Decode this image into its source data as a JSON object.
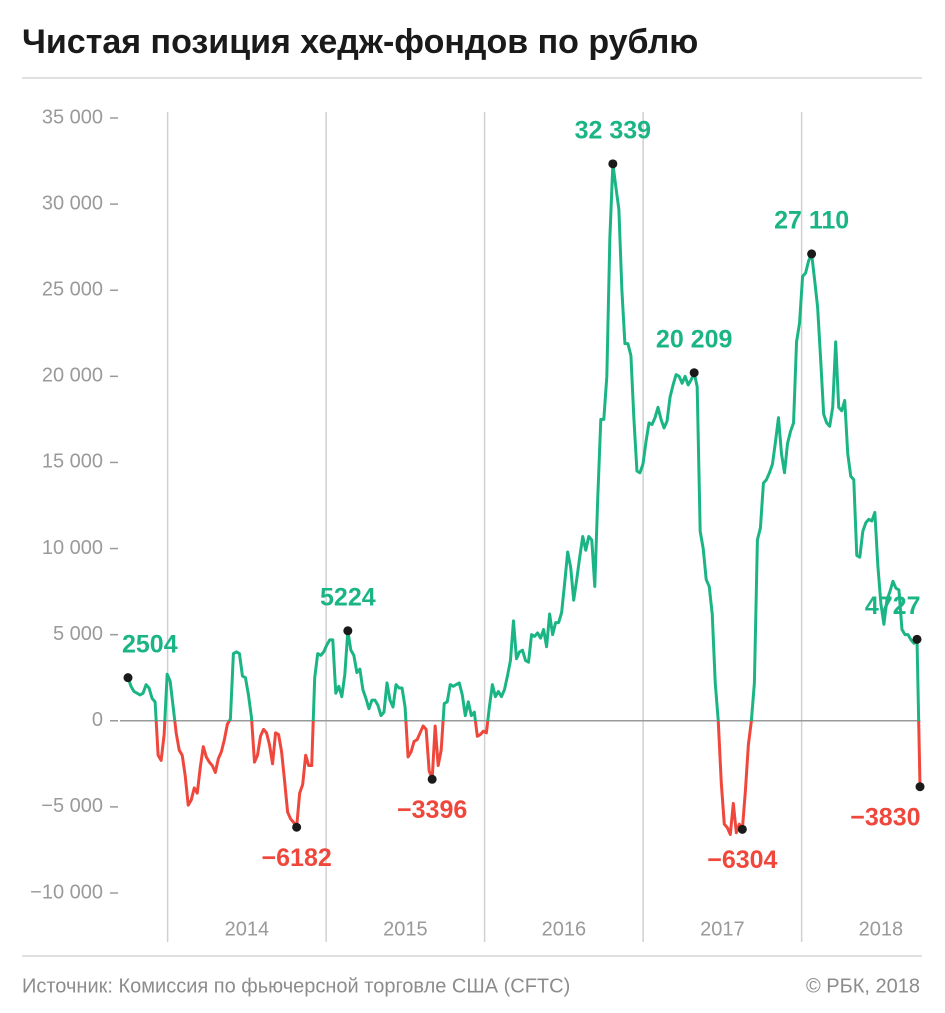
{
  "chart_data": {
    "type": "line",
    "title": "Чистая позиция хедж-фондов по рублю",
    "source": "Источник: Комиссия по фьючерсной торговле США (CFTC)",
    "credit": "© РБК, 2018",
    "color": "#1bb585",
    "negative_color": "#f0473c",
    "marker_color": "#1a1a1a",
    "xlim": [
      2013.75,
      2018.75
    ],
    "xgrid": [
      2014,
      2015,
      2016,
      2017,
      2018
    ],
    "xticks": [
      {
        "value": 2014.5,
        "label": "2014"
      },
      {
        "value": 2015.5,
        "label": "2015"
      },
      {
        "value": 2016.5,
        "label": "2016"
      },
      {
        "value": 2017.5,
        "label": "2017"
      },
      {
        "value": 2018.5,
        "label": "2018"
      }
    ],
    "ylim": [
      -10000,
      35000
    ],
    "yticks": [
      {
        "value": -10000,
        "label": "−10 000"
      },
      {
        "value": -5000,
        "label": "−5 000"
      },
      0,
      {
        "value": 5000,
        "label": "5 000"
      },
      {
        "value": 10000,
        "label": "10 000"
      },
      {
        "value": 15000,
        "label": "15 000"
      },
      {
        "value": 20000,
        "label": "20 000"
      },
      {
        "value": 25000,
        "label": "25 000"
      },
      {
        "value": 30000,
        "label": "30 000"
      },
      {
        "value": 35000,
        "label": "35 000"
      }
    ],
    "x": [
      2013.75,
      2013.769,
      2013.788,
      2013.807,
      2013.826,
      2013.845,
      2013.864,
      2013.883,
      2013.902,
      2013.921,
      2013.94,
      2013.959,
      2013.978,
      2013.997,
      2014.016,
      2014.035,
      2014.054,
      2014.073,
      2014.092,
      2014.111,
      2014.13,
      2014.149,
      2014.168,
      2014.187,
      2014.206,
      2014.225,
      2014.244,
      2014.263,
      2014.282,
      2014.301,
      2014.32,
      2014.339,
      2014.358,
      2014.377,
      2014.396,
      2014.415,
      2014.434,
      2014.453,
      2014.472,
      2014.491,
      2014.51,
      2014.529,
      2014.548,
      2014.567,
      2014.586,
      2014.605,
      2014.624,
      2014.643,
      2014.662,
      2014.681,
      2014.7,
      2014.719,
      2014.738,
      2014.757,
      2014.776,
      2014.795,
      2014.814,
      2014.833,
      2014.852,
      2014.871,
      2014.89,
      2014.909,
      2014.928,
      2014.947,
      2014.966,
      2014.985,
      2015.004,
      2015.023,
      2015.042,
      2015.061,
      2015.08,
      2015.099,
      2015.118,
      2015.137,
      2015.156,
      2015.175,
      2015.194,
      2015.213,
      2015.232,
      2015.251,
      2015.27,
      2015.289,
      2015.308,
      2015.327,
      2015.346,
      2015.365,
      2015.384,
      2015.403,
      2015.422,
      2015.441,
      2015.46,
      2015.479,
      2015.498,
      2015.517,
      2015.536,
      2015.555,
      2015.574,
      2015.593,
      2015.612,
      2015.631,
      2015.65,
      2015.669,
      2015.688,
      2015.707,
      2015.726,
      2015.745,
      2015.764,
      2015.783,
      2015.802,
      2015.821,
      2015.84,
      2015.859,
      2015.878,
      2015.897,
      2015.916,
      2015.935,
      2015.954,
      2015.973,
      2015.992,
      2016.011,
      2016.03,
      2016.049,
      2016.068,
      2016.087,
      2016.106,
      2016.125,
      2016.144,
      2016.163,
      2016.182,
      2016.201,
      2016.22,
      2016.239,
      2016.258,
      2016.277,
      2016.296,
      2016.315,
      2016.334,
      2016.353,
      2016.372,
      2016.391,
      2016.41,
      2016.429,
      2016.448,
      2016.467,
      2016.486,
      2016.505,
      2016.524,
      2016.543,
      2016.562,
      2016.581,
      2016.6,
      2016.619,
      2016.638,
      2016.657,
      2016.676,
      2016.695,
      2016.714,
      2016.733,
      2016.752,
      2016.771,
      2016.79,
      2016.809,
      2016.828,
      2016.847,
      2016.866,
      2016.885,
      2016.904,
      2016.923,
      2016.942,
      2016.961,
      2016.98,
      2016.999,
      2017.018,
      2017.037,
      2017.056,
      2017.075,
      2017.094,
      2017.113,
      2017.132,
      2017.151,
      2017.17,
      2017.189,
      2017.208,
      2017.227,
      2017.246,
      2017.265,
      2017.284,
      2017.303,
      2017.322,
      2017.341,
      2017.36,
      2017.379,
      2017.398,
      2017.417,
      2017.436,
      2017.455,
      2017.474,
      2017.493,
      2017.512,
      2017.531,
      2017.55,
      2017.569,
      2017.588,
      2017.607,
      2017.626,
      2017.645,
      2017.664,
      2017.683,
      2017.702,
      2017.721,
      2017.74,
      2017.759,
      2017.778,
      2017.797,
      2017.816,
      2017.835,
      2017.854,
      2017.873,
      2017.892,
      2017.911,
      2017.93,
      2017.949,
      2017.968,
      2017.987,
      2018.006,
      2018.025,
      2018.044,
      2018.063,
      2018.082,
      2018.101,
      2018.12,
      2018.139,
      2018.158,
      2018.177,
      2018.196,
      2018.215,
      2018.234,
      2018.253,
      2018.272,
      2018.291,
      2018.31,
      2018.329,
      2018.348,
      2018.367,
      2018.386,
      2018.405,
      2018.424,
      2018.443,
      2018.462,
      2018.481,
      2018.5,
      2018.519,
      2018.538,
      2018.557,
      2018.576,
      2018.595,
      2018.614,
      2018.633,
      2018.652,
      2018.671,
      2018.69,
      2018.709,
      2018.728,
      2018.747
    ],
    "values": [
      2504,
      2000,
      1700,
      1600,
      1500,
      1600,
      2100,
      1900,
      1300,
      1100,
      -2000,
      -2300,
      -800,
      2700,
      2300,
      800,
      -700,
      -1700,
      -2000,
      -3200,
      -4900,
      -4600,
      -3900,
      -4200,
      -2700,
      -1500,
      -2100,
      -2400,
      -2600,
      -3000,
      -2200,
      -1800,
      -1100,
      -200,
      100,
      3900,
      4000,
      3900,
      2600,
      2500,
      1500,
      200,
      -2400,
      -2000,
      -900,
      -500,
      -700,
      -1400,
      -2500,
      -700,
      -800,
      -1800,
      -3500,
      -5300,
      -5700,
      -5900,
      -6182,
      -4200,
      -3700,
      -2000,
      -2600,
      -2600,
      2500,
      3900,
      3800,
      4000,
      4400,
      4700,
      4700,
      1600,
      2000,
      1400,
      2700,
      5224,
      4100,
      3800,
      2800,
      3000,
      1800,
      1300,
      700,
      1200,
      1200,
      900,
      300,
      500,
      2200,
      1200,
      800,
      2100,
      1900,
      1900,
      800,
      -2100,
      -1800,
      -1200,
      -1100,
      -700,
      -300,
      -500,
      -2900,
      -3396,
      -300,
      -2600,
      -1700,
      1000,
      1100,
      2100,
      2000,
      2100,
      2200,
      1500,
      300,
      1100,
      300,
      500,
      -900,
      -800,
      -600,
      -700,
      800,
      2100,
      1400,
      1700,
      1400,
      1800,
      2600,
      3500,
      5800,
      3600,
      4000,
      4100,
      3500,
      3400,
      5000,
      4900,
      5100,
      4800,
      5300,
      4300,
      6200,
      5000,
      5700,
      5700,
      6300,
      8000,
      9800,
      8900,
      7000,
      8200,
      9500,
      10700,
      9900,
      10700,
      10500,
      7800,
      13000,
      17500,
      17500,
      20000,
      28000,
      32339,
      31000,
      29700,
      25000,
      21900,
      21900,
      21200,
      17500,
      14500,
      14400,
      14900,
      16200,
      17300,
      17200,
      17600,
      18200,
      17500,
      17000,
      17400,
      18800,
      19500,
      20100,
      20000,
      19600,
      20000,
      19500,
      19800,
      20209,
      19400,
      11000,
      10000,
      8200,
      7800,
      6200,
      2200,
      0,
      -3600,
      -6000,
      -6200,
      -6600,
      -4800,
      -6500,
      -6000,
      -6304,
      -4100,
      -1400,
      0,
      2200,
      10500,
      11200,
      13800,
      14000,
      14400,
      14900,
      16200,
      17600,
      15500,
      14400,
      16100,
      16800,
      17300,
      22000,
      23100,
      25800,
      26000,
      26700,
      27110,
      25600,
      24000,
      21000,
      17800,
      17300,
      17100,
      18200,
      22000,
      18200,
      18000,
      18600,
      15500,
      14200,
      14000,
      9600,
      9500,
      11000,
      11500,
      11700,
      11600,
      12100,
      9000,
      6800,
      5600,
      7000,
      7500,
      8100,
      7700,
      7600,
      5300,
      5000,
      5000,
      4700,
      4500,
      4727,
      -3830
    ],
    "value_labels": [
      "2504",
      null,
      null,
      null,
      null,
      null,
      null,
      null,
      null,
      null,
      null,
      null,
      null,
      null,
      null,
      null,
      null,
      null,
      null,
      null,
      null,
      null,
      null,
      null,
      null,
      null,
      null,
      null,
      null,
      null,
      null,
      null,
      null,
      null,
      null,
      null,
      null,
      null,
      null,
      null,
      null,
      null,
      null,
      null,
      null,
      null,
      null,
      null,
      null,
      null,
      null,
      null,
      null,
      null,
      null,
      null,
      "−6182",
      null,
      null,
      null,
      null,
      null,
      null,
      null,
      null,
      null,
      null,
      null,
      null,
      null,
      null,
      null,
      null,
      "5224",
      null,
      null,
      null,
      null,
      null,
      null,
      null,
      null,
      null,
      null,
      null,
      null,
      null,
      null,
      null,
      null,
      null,
      null,
      null,
      null,
      null,
      null,
      null,
      null,
      null,
      null,
      null,
      "−3396",
      null,
      null,
      null,
      null,
      null,
      null,
      null,
      null,
      null,
      null,
      null,
      null,
      null,
      null,
      null,
      null,
      null,
      null,
      null,
      null,
      null,
      null,
      null,
      null,
      null,
      null,
      null,
      null,
      null,
      null,
      null,
      null,
      null,
      null,
      null,
      null,
      null,
      null,
      null,
      null,
      null,
      null,
      null,
      null,
      null,
      null,
      null,
      null,
      null,
      null,
      null,
      null,
      null,
      null,
      null,
      null,
      null,
      null,
      null,
      "32 339",
      null,
      null,
      null,
      null,
      null,
      null,
      null,
      null,
      null,
      null,
      null,
      null,
      null,
      null,
      null,
      null,
      null,
      null,
      null,
      null,
      null,
      null,
      null,
      null,
      null,
      null,
      "20 209",
      null,
      null,
      null,
      null,
      null,
      null,
      null,
      null,
      null,
      null,
      null,
      null,
      null,
      null,
      null,
      "−6304",
      null,
      null,
      null,
      null,
      null,
      null,
      null,
      null,
      null,
      null,
      null,
      null,
      null,
      null,
      null,
      null,
      null,
      null,
      null,
      null,
      null,
      null,
      "27 110",
      null,
      null,
      null,
      null,
      null,
      null,
      null,
      null,
      null,
      null,
      null,
      null,
      null,
      null,
      null,
      null,
      null,
      null,
      null,
      null,
      null,
      null,
      null,
      null,
      null,
      null,
      null,
      null,
      null,
      null,
      null,
      null,
      null,
      null,
      "4727",
      "−3830"
    ]
  }
}
